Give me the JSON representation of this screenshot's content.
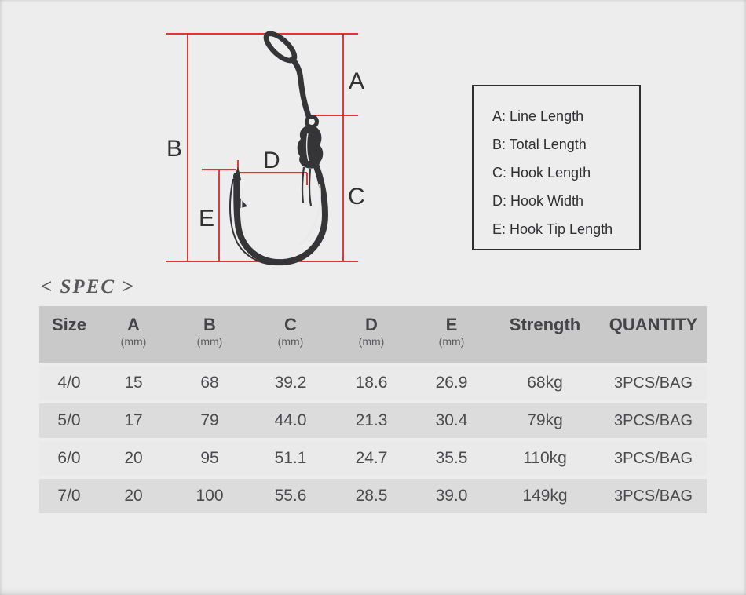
{
  "colors": {
    "background": "#ededee",
    "accent_red": "#e01b1b",
    "ink": "#353537",
    "header_bg": "#c9c9ca",
    "row_light": "#eaeaeb",
    "row_dark": "#dcdcdd"
  },
  "diagram": {
    "labels": {
      "a": "A",
      "b": "B",
      "c": "C",
      "d": "D",
      "e": "E"
    }
  },
  "legend": {
    "items": [
      "A: Line Length",
      "B: Total Length",
      "C: Hook Length",
      "D: Hook Width",
      "E: Hook Tip Length"
    ]
  },
  "spec_heading": "< SPEC >",
  "table": {
    "columns": [
      {
        "label": "Size",
        "unit": ""
      },
      {
        "label": "A",
        "unit": "(mm)"
      },
      {
        "label": "B",
        "unit": "(mm)"
      },
      {
        "label": "C",
        "unit": "(mm)"
      },
      {
        "label": "D",
        "unit": "(mm)"
      },
      {
        "label": "E",
        "unit": "(mm)"
      },
      {
        "label": "Strength",
        "unit": ""
      },
      {
        "label": "QUANTITY",
        "unit": ""
      }
    ],
    "rows": [
      [
        "4/0",
        "15",
        "68",
        "39.2",
        "18.6",
        "26.9",
        "68kg",
        "3PCS/BAG"
      ],
      [
        "5/0",
        "17",
        "79",
        "44.0",
        "21.3",
        "30.4",
        "79kg",
        "3PCS/BAG"
      ],
      [
        "6/0",
        "20",
        "95",
        "51.1",
        "24.7",
        "35.5",
        "110kg",
        "3PCS/BAG"
      ],
      [
        "7/0",
        "20",
        "100",
        "55.6",
        "28.5",
        "39.0",
        "149kg",
        "3PCS/BAG"
      ]
    ]
  }
}
